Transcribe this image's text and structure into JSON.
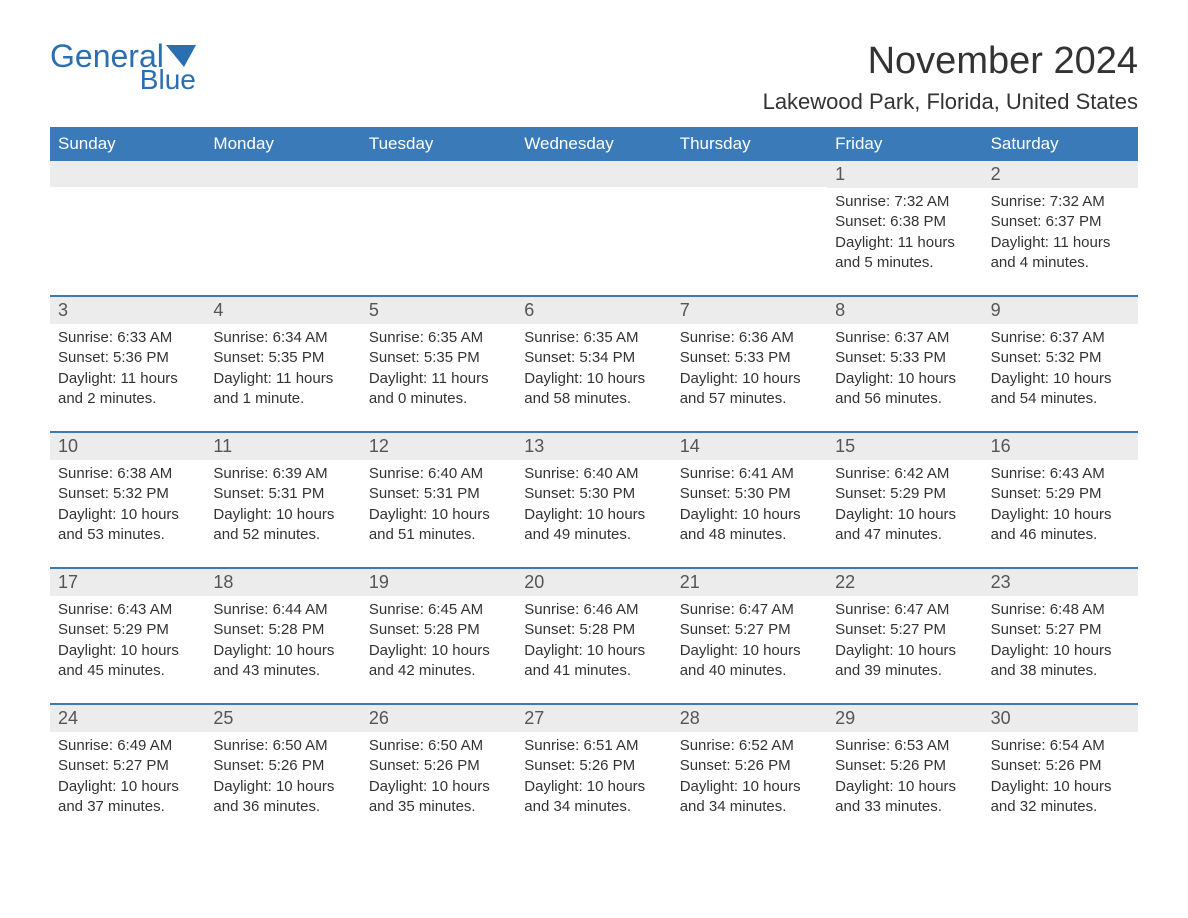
{
  "logo": {
    "text1": "General",
    "text2": "Blue",
    "color": "#2a6fb0"
  },
  "header": {
    "month_title": "November 2024",
    "location": "Lakewood Park, Florida, United States"
  },
  "colors": {
    "header_bg": "#3a7ab8",
    "header_text": "#ffffff",
    "daynum_bg": "#ececec",
    "daynum_text": "#555555",
    "body_text": "#333333",
    "row_border": "#3a7ab8"
  },
  "weekdays": [
    "Sunday",
    "Monday",
    "Tuesday",
    "Wednesday",
    "Thursday",
    "Friday",
    "Saturday"
  ],
  "weeks": [
    [
      {
        "empty": true
      },
      {
        "empty": true
      },
      {
        "empty": true
      },
      {
        "empty": true
      },
      {
        "empty": true
      },
      {
        "day": "1",
        "sunrise": "Sunrise: 7:32 AM",
        "sunset": "Sunset: 6:38 PM",
        "daylight1": "Daylight: 11 hours",
        "daylight2": "and 5 minutes."
      },
      {
        "day": "2",
        "sunrise": "Sunrise: 7:32 AM",
        "sunset": "Sunset: 6:37 PM",
        "daylight1": "Daylight: 11 hours",
        "daylight2": "and 4 minutes."
      }
    ],
    [
      {
        "day": "3",
        "sunrise": "Sunrise: 6:33 AM",
        "sunset": "Sunset: 5:36 PM",
        "daylight1": "Daylight: 11 hours",
        "daylight2": "and 2 minutes."
      },
      {
        "day": "4",
        "sunrise": "Sunrise: 6:34 AM",
        "sunset": "Sunset: 5:35 PM",
        "daylight1": "Daylight: 11 hours",
        "daylight2": "and 1 minute."
      },
      {
        "day": "5",
        "sunrise": "Sunrise: 6:35 AM",
        "sunset": "Sunset: 5:35 PM",
        "daylight1": "Daylight: 11 hours",
        "daylight2": "and 0 minutes."
      },
      {
        "day": "6",
        "sunrise": "Sunrise: 6:35 AM",
        "sunset": "Sunset: 5:34 PM",
        "daylight1": "Daylight: 10 hours",
        "daylight2": "and 58 minutes."
      },
      {
        "day": "7",
        "sunrise": "Sunrise: 6:36 AM",
        "sunset": "Sunset: 5:33 PM",
        "daylight1": "Daylight: 10 hours",
        "daylight2": "and 57 minutes."
      },
      {
        "day": "8",
        "sunrise": "Sunrise: 6:37 AM",
        "sunset": "Sunset: 5:33 PM",
        "daylight1": "Daylight: 10 hours",
        "daylight2": "and 56 minutes."
      },
      {
        "day": "9",
        "sunrise": "Sunrise: 6:37 AM",
        "sunset": "Sunset: 5:32 PM",
        "daylight1": "Daylight: 10 hours",
        "daylight2": "and 54 minutes."
      }
    ],
    [
      {
        "day": "10",
        "sunrise": "Sunrise: 6:38 AM",
        "sunset": "Sunset: 5:32 PM",
        "daylight1": "Daylight: 10 hours",
        "daylight2": "and 53 minutes."
      },
      {
        "day": "11",
        "sunrise": "Sunrise: 6:39 AM",
        "sunset": "Sunset: 5:31 PM",
        "daylight1": "Daylight: 10 hours",
        "daylight2": "and 52 minutes."
      },
      {
        "day": "12",
        "sunrise": "Sunrise: 6:40 AM",
        "sunset": "Sunset: 5:31 PM",
        "daylight1": "Daylight: 10 hours",
        "daylight2": "and 51 minutes."
      },
      {
        "day": "13",
        "sunrise": "Sunrise: 6:40 AM",
        "sunset": "Sunset: 5:30 PM",
        "daylight1": "Daylight: 10 hours",
        "daylight2": "and 49 minutes."
      },
      {
        "day": "14",
        "sunrise": "Sunrise: 6:41 AM",
        "sunset": "Sunset: 5:30 PM",
        "daylight1": "Daylight: 10 hours",
        "daylight2": "and 48 minutes."
      },
      {
        "day": "15",
        "sunrise": "Sunrise: 6:42 AM",
        "sunset": "Sunset: 5:29 PM",
        "daylight1": "Daylight: 10 hours",
        "daylight2": "and 47 minutes."
      },
      {
        "day": "16",
        "sunrise": "Sunrise: 6:43 AM",
        "sunset": "Sunset: 5:29 PM",
        "daylight1": "Daylight: 10 hours",
        "daylight2": "and 46 minutes."
      }
    ],
    [
      {
        "day": "17",
        "sunrise": "Sunrise: 6:43 AM",
        "sunset": "Sunset: 5:29 PM",
        "daylight1": "Daylight: 10 hours",
        "daylight2": "and 45 minutes."
      },
      {
        "day": "18",
        "sunrise": "Sunrise: 6:44 AM",
        "sunset": "Sunset: 5:28 PM",
        "daylight1": "Daylight: 10 hours",
        "daylight2": "and 43 minutes."
      },
      {
        "day": "19",
        "sunrise": "Sunrise: 6:45 AM",
        "sunset": "Sunset: 5:28 PM",
        "daylight1": "Daylight: 10 hours",
        "daylight2": "and 42 minutes."
      },
      {
        "day": "20",
        "sunrise": "Sunrise: 6:46 AM",
        "sunset": "Sunset: 5:28 PM",
        "daylight1": "Daylight: 10 hours",
        "daylight2": "and 41 minutes."
      },
      {
        "day": "21",
        "sunrise": "Sunrise: 6:47 AM",
        "sunset": "Sunset: 5:27 PM",
        "daylight1": "Daylight: 10 hours",
        "daylight2": "and 40 minutes."
      },
      {
        "day": "22",
        "sunrise": "Sunrise: 6:47 AM",
        "sunset": "Sunset: 5:27 PM",
        "daylight1": "Daylight: 10 hours",
        "daylight2": "and 39 minutes."
      },
      {
        "day": "23",
        "sunrise": "Sunrise: 6:48 AM",
        "sunset": "Sunset: 5:27 PM",
        "daylight1": "Daylight: 10 hours",
        "daylight2": "and 38 minutes."
      }
    ],
    [
      {
        "day": "24",
        "sunrise": "Sunrise: 6:49 AM",
        "sunset": "Sunset: 5:27 PM",
        "daylight1": "Daylight: 10 hours",
        "daylight2": "and 37 minutes."
      },
      {
        "day": "25",
        "sunrise": "Sunrise: 6:50 AM",
        "sunset": "Sunset: 5:26 PM",
        "daylight1": "Daylight: 10 hours",
        "daylight2": "and 36 minutes."
      },
      {
        "day": "26",
        "sunrise": "Sunrise: 6:50 AM",
        "sunset": "Sunset: 5:26 PM",
        "daylight1": "Daylight: 10 hours",
        "daylight2": "and 35 minutes."
      },
      {
        "day": "27",
        "sunrise": "Sunrise: 6:51 AM",
        "sunset": "Sunset: 5:26 PM",
        "daylight1": "Daylight: 10 hours",
        "daylight2": "and 34 minutes."
      },
      {
        "day": "28",
        "sunrise": "Sunrise: 6:52 AM",
        "sunset": "Sunset: 5:26 PM",
        "daylight1": "Daylight: 10 hours",
        "daylight2": "and 34 minutes."
      },
      {
        "day": "29",
        "sunrise": "Sunrise: 6:53 AM",
        "sunset": "Sunset: 5:26 PM",
        "daylight1": "Daylight: 10 hours",
        "daylight2": "and 33 minutes."
      },
      {
        "day": "30",
        "sunrise": "Sunrise: 6:54 AM",
        "sunset": "Sunset: 5:26 PM",
        "daylight1": "Daylight: 10 hours",
        "daylight2": "and 32 minutes."
      }
    ]
  ]
}
